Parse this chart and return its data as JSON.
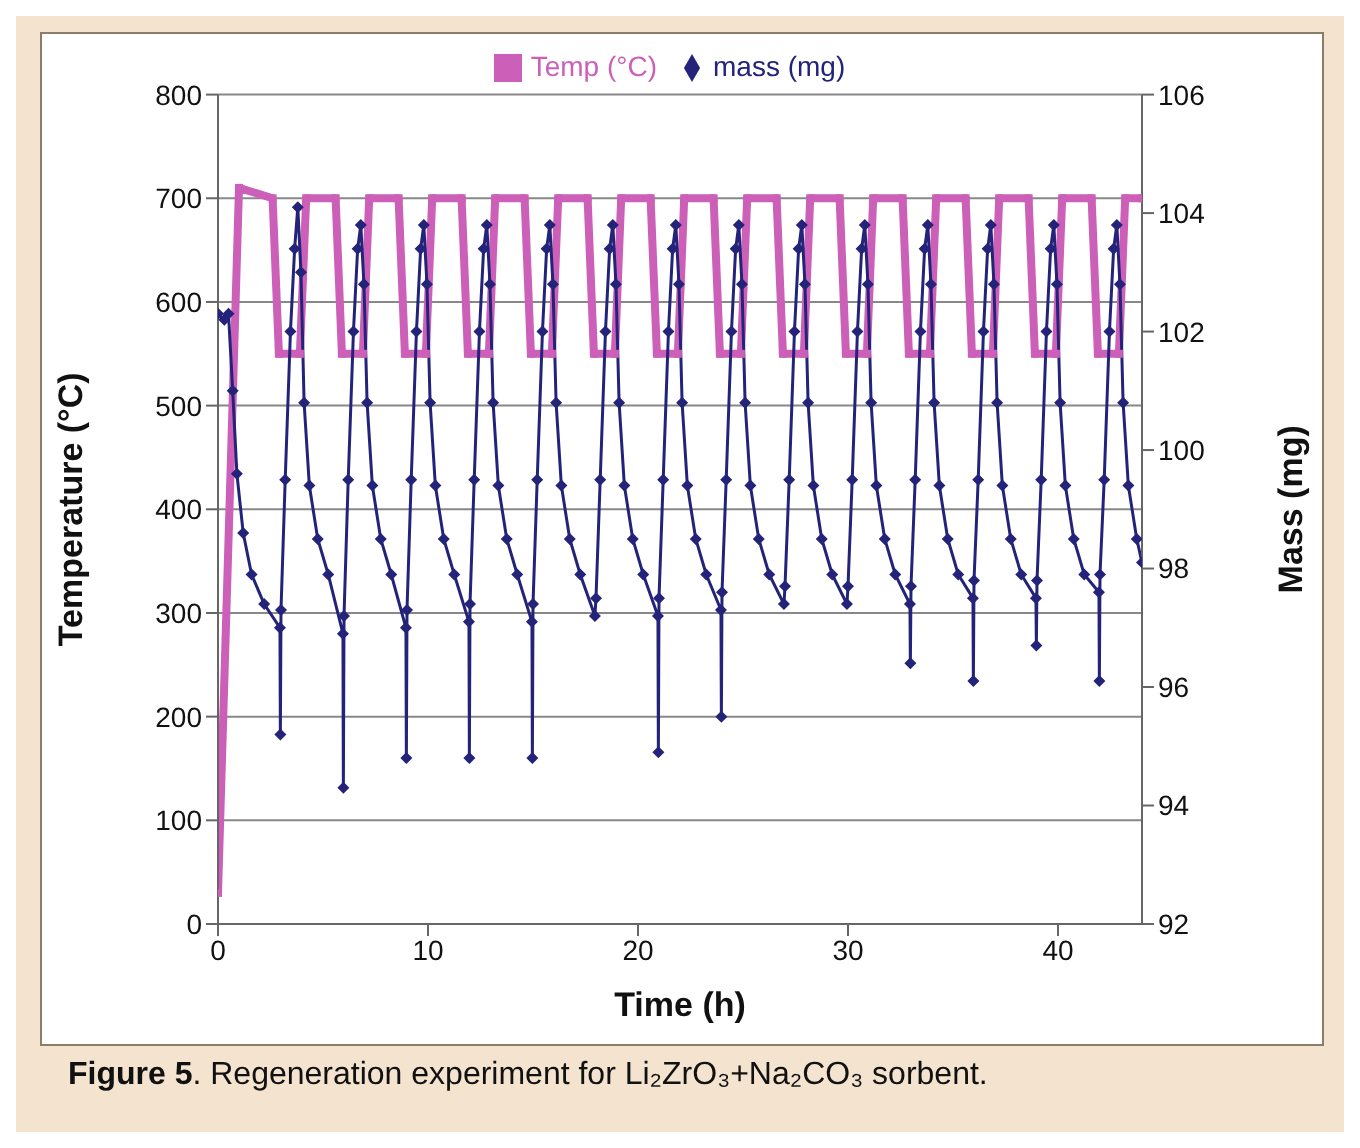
{
  "chart_data": {
    "type": "line",
    "xlabel": "Time (h)",
    "ylabel": "Temperature (°C)",
    "y2label": "Mass (mg)",
    "annotations": [
      "Figure 5.  Regeneration experiment for Li₂ZrO₃+Na₂CO₃ sorbent."
    ],
    "xlim": [
      0,
      44
    ],
    "xticks": [
      0,
      10,
      20,
      30,
      40
    ],
    "ylim": [
      0,
      800
    ],
    "yticks": [
      0,
      100,
      200,
      300,
      400,
      500,
      600,
      700,
      800
    ],
    "y2lim": [
      92,
      106
    ],
    "y2ticks": [
      92,
      94,
      96,
      98,
      100,
      102,
      104,
      106
    ],
    "grid": "y",
    "legend": "top",
    "series": [
      {
        "name": "Temp (°C)",
        "color": "#cc5fb8",
        "marker": "square",
        "x": [
          0,
          1.0,
          2.6,
          2.9,
          3.9,
          4.2,
          5.6,
          5.9,
          6.9,
          7.2,
          8.6,
          8.9,
          9.9,
          10.2,
          11.6,
          11.9,
          12.9,
          13.2,
          14.6,
          14.9,
          15.9,
          16.2,
          17.6,
          17.9,
          18.9,
          19.2,
          20.6,
          20.9,
          21.9,
          22.2,
          23.6,
          23.9,
          24.9,
          25.2,
          26.6,
          26.9,
          27.9,
          28.2,
          29.6,
          29.9,
          30.9,
          31.2,
          32.6,
          32.9,
          33.9,
          34.2,
          35.6,
          35.9,
          36.9,
          37.2,
          38.6,
          38.9,
          39.9,
          40.2,
          41.6,
          41.9,
          42.9,
          43.2,
          44
        ],
        "values": [
          30,
          710,
          700,
          550,
          550,
          700,
          700,
          550,
          550,
          700,
          700,
          550,
          550,
          700,
          700,
          550,
          550,
          700,
          700,
          550,
          550,
          700,
          700,
          550,
          550,
          700,
          700,
          550,
          550,
          700,
          700,
          550,
          550,
          700,
          700,
          550,
          550,
          700,
          700,
          550,
          550,
          700,
          700,
          550,
          550,
          700,
          700,
          550,
          550,
          700,
          700,
          550,
          550,
          700,
          700,
          550,
          550,
          700,
          700
        ]
      },
      {
        "name": "mass (mg)",
        "color": "#23237a",
        "marker": "diamond",
        "axis": "y2",
        "x": [
          0,
          0.3,
          0.5,
          0.7,
          0.9,
          1.2,
          1.6,
          2.2,
          2.95,
          2.97,
          3.0,
          3.2,
          3.45,
          3.65,
          3.8,
          3.95,
          4.1,
          4.35,
          4.75,
          5.25,
          5.95,
          5.97,
          6.0,
          6.2,
          6.45,
          6.65,
          6.8,
          6.95,
          7.1,
          7.35,
          7.75,
          8.25,
          8.95,
          8.97,
          9.0,
          9.2,
          9.45,
          9.65,
          9.8,
          9.95,
          10.1,
          10.35,
          10.75,
          11.25,
          11.95,
          11.97,
          12.0,
          12.2,
          12.45,
          12.65,
          12.8,
          12.95,
          13.1,
          13.35,
          13.75,
          14.25,
          14.95,
          14.97,
          15.0,
          15.2,
          15.45,
          15.65,
          15.8,
          15.95,
          16.1,
          16.35,
          16.75,
          17.25,
          17.95,
          18.0,
          18.2,
          18.45,
          18.65,
          18.8,
          18.95,
          19.1,
          19.35,
          19.75,
          20.25,
          20.95,
          20.97,
          21.0,
          21.2,
          21.45,
          21.65,
          21.8,
          21.95,
          22.1,
          22.35,
          22.75,
          23.25,
          23.95,
          23.97,
          24.0,
          24.2,
          24.45,
          24.65,
          24.8,
          24.95,
          25.1,
          25.35,
          25.75,
          26.25,
          26.95,
          27.0,
          27.2,
          27.45,
          27.65,
          27.8,
          27.95,
          28.1,
          28.35,
          28.75,
          29.25,
          29.95,
          30.0,
          30.2,
          30.45,
          30.65,
          30.8,
          30.95,
          31.1,
          31.35,
          31.75,
          32.25,
          32.95,
          32.97,
          33.0,
          33.2,
          33.45,
          33.65,
          33.8,
          33.95,
          34.1,
          34.35,
          34.75,
          35.25,
          35.95,
          35.97,
          36.0,
          36.2,
          36.45,
          36.65,
          36.8,
          36.95,
          37.1,
          37.35,
          37.75,
          38.25,
          38.95,
          38.97,
          39.0,
          39.2,
          39.45,
          39.65,
          39.8,
          39.95,
          40.1,
          40.35,
          40.75,
          41.25,
          41.95,
          41.97,
          42.0,
          42.2,
          42.45,
          42.65,
          42.8,
          42.95,
          43.1,
          43.35,
          43.75,
          44.0
        ],
        "values": [
          102.3,
          102.2,
          102.3,
          101.0,
          99.6,
          98.6,
          97.9,
          97.4,
          97.0,
          95.2,
          97.3,
          99.5,
          102.0,
          103.4,
          104.1,
          103.0,
          100.8,
          99.4,
          98.5,
          97.9,
          96.9,
          94.3,
          97.2,
          99.5,
          102.0,
          103.4,
          103.8,
          102.8,
          100.8,
          99.4,
          98.5,
          97.9,
          97.0,
          94.8,
          97.3,
          99.5,
          102.0,
          103.4,
          103.8,
          102.8,
          100.8,
          99.4,
          98.5,
          97.9,
          97.1,
          94.8,
          97.4,
          99.5,
          102.0,
          103.4,
          103.8,
          102.8,
          100.8,
          99.4,
          98.5,
          97.9,
          97.1,
          94.8,
          97.4,
          99.5,
          102.0,
          103.4,
          103.8,
          102.8,
          100.8,
          99.4,
          98.5,
          97.9,
          97.2,
          97.5,
          99.5,
          102.0,
          103.4,
          103.8,
          102.8,
          100.8,
          99.4,
          98.5,
          97.9,
          97.2,
          94.9,
          97.5,
          99.5,
          102.0,
          103.4,
          103.8,
          102.8,
          100.8,
          99.4,
          98.5,
          97.9,
          97.3,
          95.5,
          97.6,
          99.5,
          102.0,
          103.4,
          103.8,
          102.8,
          100.8,
          99.4,
          98.5,
          97.9,
          97.4,
          97.7,
          99.5,
          102.0,
          103.4,
          103.8,
          102.8,
          100.8,
          99.4,
          98.5,
          97.9,
          97.4,
          97.7,
          99.5,
          102.0,
          103.4,
          103.8,
          102.8,
          100.8,
          99.4,
          98.5,
          97.9,
          97.4,
          96.4,
          97.7,
          99.5,
          102.0,
          103.4,
          103.8,
          102.8,
          100.8,
          99.4,
          98.5,
          97.9,
          97.5,
          96.1,
          97.8,
          99.5,
          102.0,
          103.4,
          103.8,
          102.8,
          100.8,
          99.4,
          98.5,
          97.9,
          97.5,
          96.7,
          97.8,
          99.5,
          102.0,
          103.4,
          103.8,
          102.8,
          100.8,
          99.4,
          98.5,
          97.9,
          97.6,
          96.1,
          97.9,
          99.5,
          102.0,
          103.4,
          103.8,
          102.8,
          100.8,
          99.4,
          98.5,
          98.1
        ]
      }
    ]
  }
}
